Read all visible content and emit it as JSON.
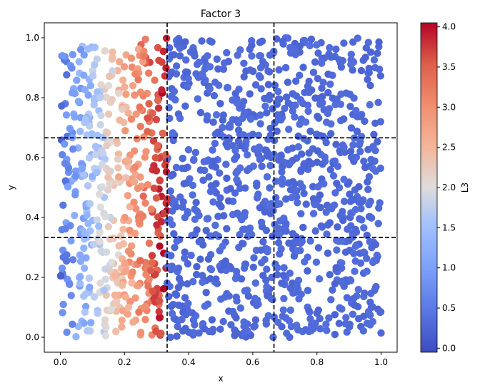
{
  "chart_data": {
    "type": "scatter",
    "title": "Factor 3",
    "xlabel": "x",
    "ylabel": "y",
    "xlim": [
      -0.05,
      1.05
    ],
    "ylim": [
      -0.05,
      1.05
    ],
    "xticks": [
      0.0,
      0.2,
      0.4,
      0.6,
      0.8,
      1.0
    ],
    "yticks": [
      0.0,
      0.2,
      0.4,
      0.6,
      0.8,
      1.0
    ],
    "xtick_labels": [
      "0.0",
      "0.2",
      "0.4",
      "0.6",
      "0.8",
      "1.0"
    ],
    "ytick_labels": [
      "0.0",
      "0.2",
      "0.4",
      "0.6",
      "0.8",
      "1.0"
    ],
    "grid": false,
    "colormap": "coolwarm",
    "colorbar": {
      "label": "L3",
      "range": [
        -0.05,
        4.05
      ],
      "ticks": [
        0.0,
        0.5,
        1.0,
        1.5,
        2.0,
        2.5,
        3.0,
        3.5,
        4.0
      ],
      "tick_labels": [
        "0.0",
        "0.5",
        "1.0",
        "1.5",
        "2.0",
        "2.5",
        "3.0",
        "3.5",
        "4.0"
      ]
    },
    "reference_lines": {
      "vertical_x": [
        0.333,
        0.666
      ],
      "horizontal_y": [
        0.333,
        0.666
      ],
      "style": "dashed",
      "color": "#000000"
    },
    "point_count": 1500,
    "value_pattern": "L3 ≈ 0.3 for x > 0.333; for x < 0.333, L3 rises with x from about 0.5 near x=0 to about 4.0 near x=0.32"
  }
}
